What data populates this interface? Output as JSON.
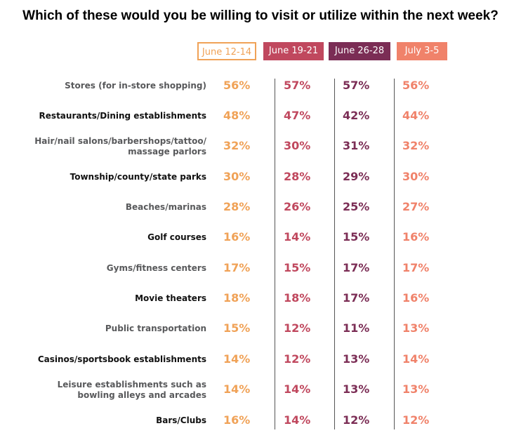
{
  "title": "Which of these would you be willing to visit or utilize within the next week?",
  "chart_data": {
    "type": "table",
    "title": "Which of these would you be willing to visit or utilize within the next week?",
    "columns": [
      {
        "name": "June 12-14",
        "color": "#f0a257"
      },
      {
        "name": "June 19-21",
        "color": "#c0485e"
      },
      {
        "name": "June 26-28",
        "color": "#7b2d55"
      },
      {
        "name": "July 3-5",
        "color": "#f0826a"
      }
    ],
    "rows": [
      {
        "label": "Stores (for in-store shopping)",
        "values": [
          "56%",
          "57%",
          "57%",
          "56%"
        ],
        "dark": false
      },
      {
        "label": "Restaurants/Dining establishments",
        "values": [
          "48%",
          "47%",
          "42%",
          "44%"
        ],
        "dark": true
      },
      {
        "label": "Hair/nail salons/barbershops/tattoo/\nmassage parlors",
        "values": [
          "32%",
          "30%",
          "31%",
          "32%"
        ],
        "dark": false
      },
      {
        "label": "Township/county/state parks",
        "values": [
          "30%",
          "28%",
          "29%",
          "30%"
        ],
        "dark": true
      },
      {
        "label": "Beaches/marinas",
        "values": [
          "28%",
          "26%",
          "25%",
          "27%"
        ],
        "dark": false
      },
      {
        "label": "Golf courses",
        "values": [
          "16%",
          "14%",
          "15%",
          "16%"
        ],
        "dark": true
      },
      {
        "label": "Gyms/fitness centers",
        "values": [
          "17%",
          "15%",
          "17%",
          "17%"
        ],
        "dark": false
      },
      {
        "label": "Movie theaters",
        "values": [
          "18%",
          "18%",
          "17%",
          "16%"
        ],
        "dark": true
      },
      {
        "label": "Public transportation",
        "values": [
          "15%",
          "12%",
          "11%",
          "13%"
        ],
        "dark": false
      },
      {
        "label": "Casinos/sportsbook establishments",
        "values": [
          "14%",
          "12%",
          "13%",
          "14%"
        ],
        "dark": true
      },
      {
        "label": "Leisure establishments such as\nbowling alleys and arcades",
        "values": [
          "14%",
          "14%",
          "13%",
          "13%"
        ],
        "dark": false
      },
      {
        "label": "Bars/Clubs",
        "values": [
          "16%",
          "14%",
          "12%",
          "12%"
        ],
        "dark": true
      }
    ]
  }
}
